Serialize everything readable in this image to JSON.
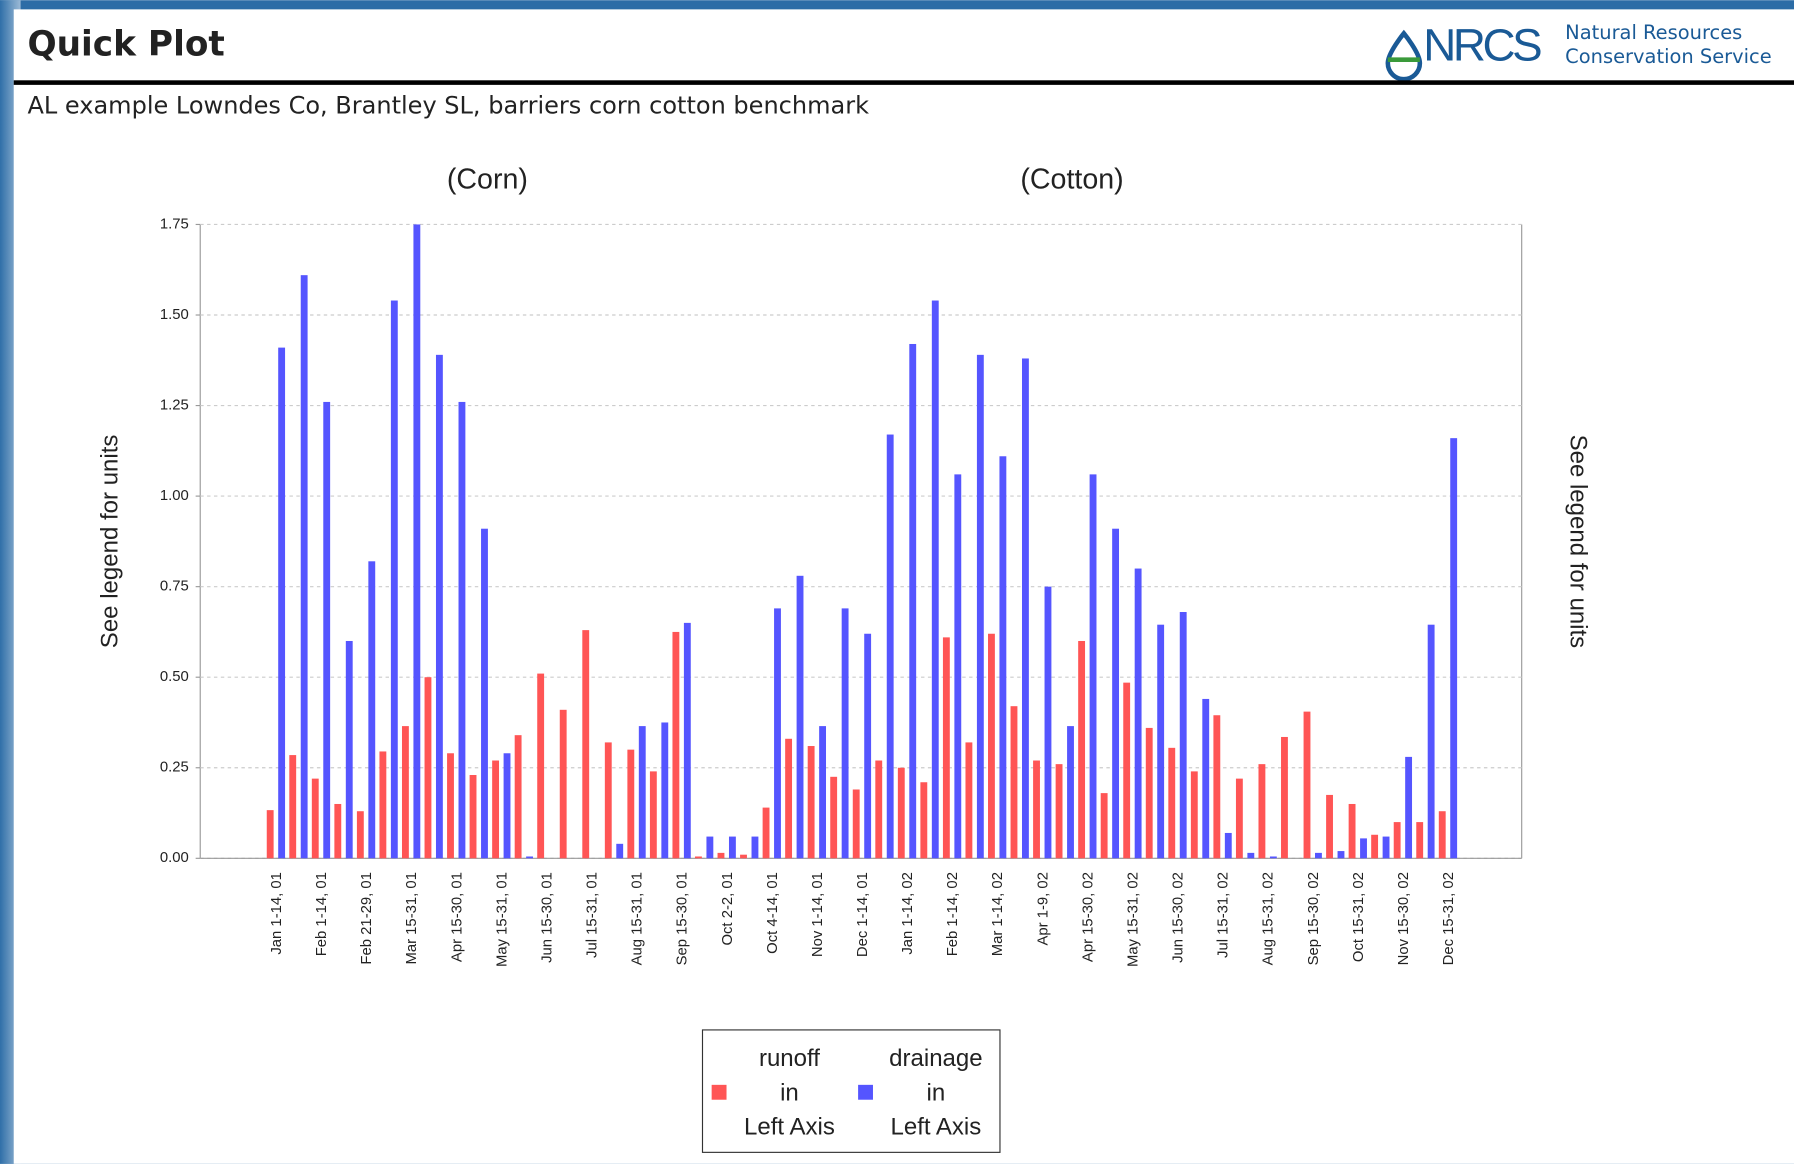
{
  "header": {
    "title": "Quick Plot",
    "logo": "NRCS",
    "agency_line1": "Natural Resources",
    "agency_line2": "Conservation Service"
  },
  "chart_data": {
    "type": "bar",
    "title": "AL example Lowndes Co, Brantley SL, barriers corn cotton benchmark",
    "annotations": [
      "(Corn)",
      "(Cotton)"
    ],
    "ylabel": "See legend for units",
    "y2label": "See legend for units",
    "categories": [
      "Jan 1-14, 01",
      null,
      "Feb 1-14, 01",
      null,
      "Feb 21-29, 01",
      null,
      "Mar 15-31, 01",
      null,
      "Apr 15-30, 01",
      null,
      "May 15-31, 01",
      null,
      "Jun 15-30, 01",
      null,
      "Jul 15-31, 01",
      null,
      "Aug 15-31, 01",
      null,
      "Sep 15-30, 01",
      null,
      "Oct 2-2, 01",
      null,
      "Oct 4-14, 01",
      null,
      "Nov 1-14, 01",
      null,
      "Dec 1-14, 01",
      null,
      "Jan 1-14, 02",
      null,
      "Feb 1-14, 02",
      null,
      "Mar 1-14, 02",
      null,
      "Apr 1-9, 02",
      null,
      "Apr 15-30, 02",
      null,
      "May 15-31, 02",
      null,
      "Jun 15-30, 02",
      null,
      "Jul 15-31, 02",
      null,
      "Aug 15-31, 02",
      null,
      "Sep 15-30, 02",
      null,
      "Oct 15-31, 02",
      null,
      "Nov 15-30, 02",
      null,
      "Dec 15-31, 02"
    ],
    "series": [
      {
        "name": "runoff",
        "unit": "in",
        "axis_label": "Left Axis",
        "color": "#ff5555",
        "values": [
          0.133,
          0.285,
          0.22,
          0.15,
          0.13,
          0.295,
          0.365,
          0.5,
          0.29,
          0.23,
          0.27,
          0.34,
          0.51,
          0.41,
          0.63,
          0.32,
          0.3,
          0.24,
          0.625,
          0.005,
          0.015,
          0.01,
          0.14,
          0.33,
          0.31,
          0.225,
          0.19,
          0.27,
          0.25,
          0.21,
          0.61,
          0.32,
          0.62,
          0.42,
          0.27,
          0.26,
          0.6,
          0.18,
          0.485,
          0.36,
          0.305,
          0.24,
          0.395,
          0.22,
          0.26,
          0.335,
          0.405,
          0.175,
          0.15,
          0.065,
          0.1,
          0.1,
          0.13
        ]
      },
      {
        "name": "drainage",
        "unit": "in",
        "axis_label": "Left Axis",
        "color": "#5555ff",
        "values": [
          1.41,
          1.61,
          1.26,
          0.6,
          0.82,
          1.54,
          1.75,
          1.39,
          1.26,
          0.91,
          0.29,
          0.005,
          0,
          0,
          0,
          0.04,
          0.365,
          0.375,
          0.65,
          0.06,
          0.06,
          0.06,
          0.69,
          0.78,
          0.365,
          0.69,
          0.62,
          1.17,
          1.42,
          1.54,
          1.06,
          1.39,
          1.11,
          1.38,
          0.75,
          0.365,
          1.06,
          0.91,
          0.8,
          0.645,
          0.68,
          0.44,
          0.07,
          0.015,
          0.005,
          0,
          0.015,
          0.02,
          0.055,
          0.06,
          0.28,
          0.645,
          1.16
        ]
      }
    ],
    "ylim": [
      0,
      1.75
    ],
    "yticks": [
      {
        "value": 0,
        "label": "0.00"
      },
      0.25,
      {
        "value": 0.5,
        "label": "0.50"
      },
      0.75,
      {
        "value": 1,
        "label": "1.00"
      },
      1.25,
      {
        "value": 1.5,
        "label": "1.50"
      },
      1.75
    ],
    "grid": true
  }
}
